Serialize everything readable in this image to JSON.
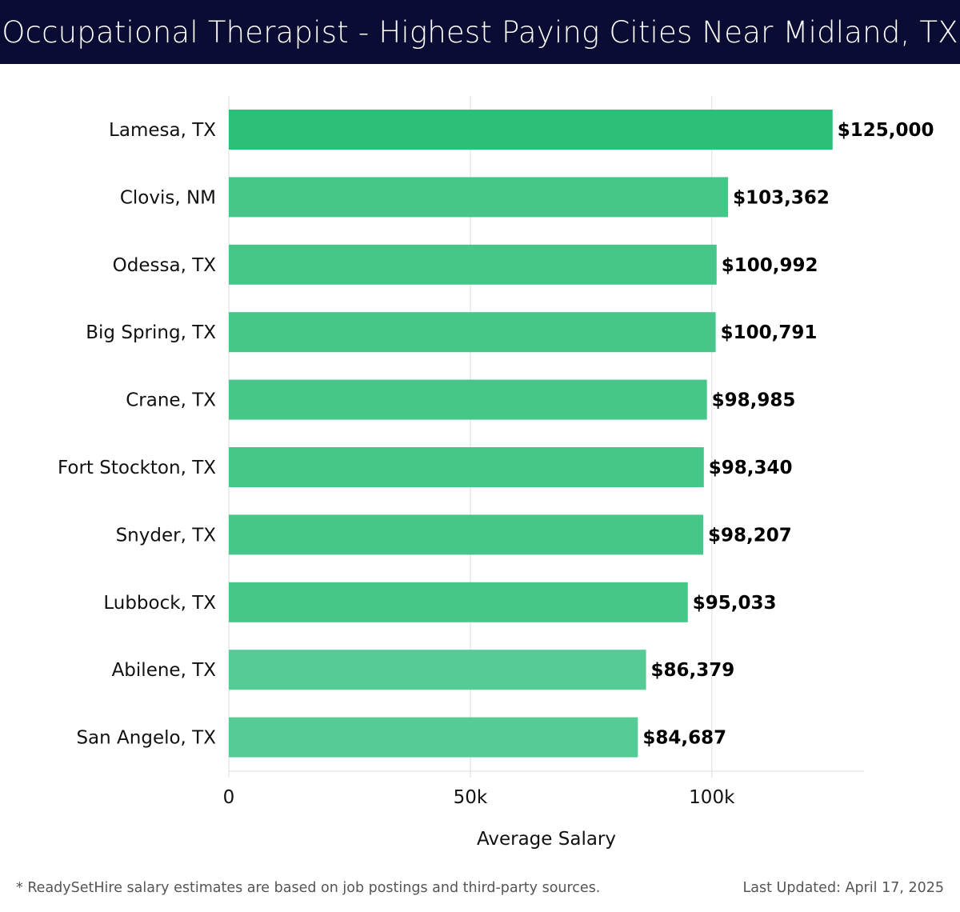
{
  "header": {
    "title": "Occupational Therapist - Highest Paying Cities Near Midland, TX",
    "background_color": "#0b0c33"
  },
  "chart_data": {
    "type": "bar",
    "orientation": "horizontal",
    "title": "Occupational Therapist - Highest Paying Cities Near Midland, TX",
    "xlabel": "Average Salary",
    "ylabel": "",
    "xlim": [
      0,
      131500
    ],
    "x_ticks": [
      {
        "value": 0,
        "label": "0"
      },
      {
        "value": 50000,
        "label": "50k"
      },
      {
        "value": 100000,
        "label": "100k"
      }
    ],
    "grid": "vertical",
    "categories": [
      "Lamesa, TX",
      "Clovis, NM",
      "Odessa, TX",
      "Big Spring, TX",
      "Crane, TX",
      "Fort Stockton, TX",
      "Snyder, TX",
      "Lubbock, TX",
      "Abilene, TX",
      "San Angelo, TX"
    ],
    "values": [
      125000,
      103362,
      100992,
      100791,
      98985,
      98340,
      98207,
      95033,
      86379,
      84687
    ],
    "value_labels": [
      "$125,000",
      "$103,362",
      "$100,992",
      "$100,791",
      "$98,985",
      "$98,340",
      "$98,207",
      "$95,033",
      "$86,379",
      "$84,687"
    ],
    "bar_colors": [
      "#2cbf78",
      "#47c68a",
      "#47c68a",
      "#47c68a",
      "#47c68a",
      "#47c68a",
      "#47c68a",
      "#47c68a",
      "#57cb95",
      "#57cb95"
    ]
  },
  "footer": {
    "note": "* ReadySetHire salary estimates are based on job postings and third-party sources.",
    "updated": "Last Updated: April 17, 2025"
  }
}
